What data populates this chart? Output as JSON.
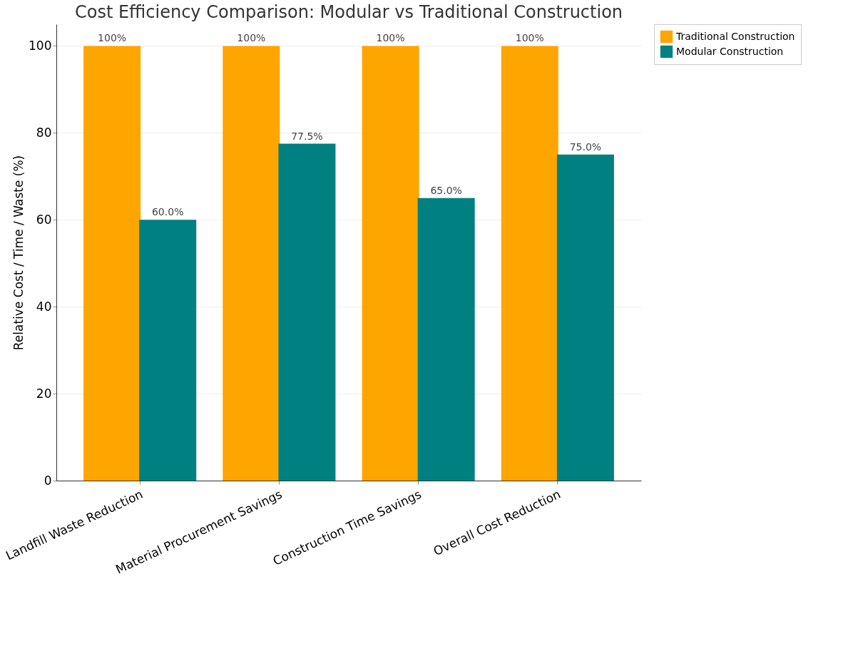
{
  "chart_data": {
    "type": "bar",
    "title": "Cost Efficiency Comparison: Modular vs Traditional Construction",
    "ylabel": "Relative Cost / Time / Waste (%)",
    "categories": [
      "Landfill Waste Reduction",
      "Material Procurement Savings",
      "Construction Time Savings",
      "Overall Cost Reduction"
    ],
    "series": [
      {
        "name": "Traditional Construction",
        "color": "#ffa500",
        "values": [
          100,
          100,
          100,
          100
        ],
        "value_labels": [
          "100%",
          "100%",
          "100%",
          "100%"
        ]
      },
      {
        "name": "Modular Construction",
        "color": "#008080",
        "values": [
          60.0,
          77.5,
          65.0,
          75.0
        ],
        "value_labels": [
          "60.0%",
          "77.5%",
          "65.0%",
          "75.0%"
        ]
      }
    ],
    "ylim": [
      0,
      105
    ],
    "yticks": [
      0,
      20,
      40,
      60,
      80,
      100
    ],
    "grid": "y",
    "legend": "top right"
  }
}
